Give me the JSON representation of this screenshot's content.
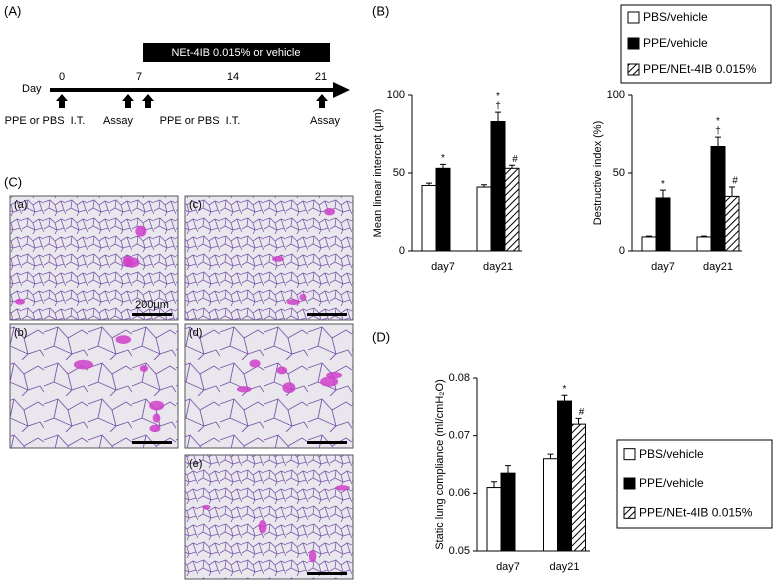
{
  "panel_labels": {
    "A": "(A)",
    "B": "(B)",
    "C": "(C)",
    "D": "(D)"
  },
  "timeline": {
    "axis_label": "Day",
    "days": [
      "0",
      "7",
      "14",
      "21"
    ],
    "treatment": "NEt-4IB 0.015% or vehicle",
    "events": [
      "PPE or PBS  I.T.",
      "Assay",
      "PPE or PBS  I.T.",
      "Assay"
    ]
  },
  "micrographs": {
    "labels": [
      "(a)",
      "(b)",
      "(c)",
      "(d)",
      "(e)"
    ],
    "scale_bar": "200μm"
  },
  "chart_data": [
    {
      "type": "bar",
      "y_label": "Mean linear intercept (μm)",
      "categories": [
        "day7",
        "day21"
      ],
      "ylim": [
        0,
        100
      ],
      "yticks": [
        0,
        50,
        100
      ],
      "legend": true,
      "series": [
        {
          "name": "PBS/vehicle",
          "color": "#ffffff",
          "values": [
            42,
            41
          ],
          "errors": [
            1.5,
            1.5
          ]
        },
        {
          "name": "PPE/vehicle",
          "color": "#000000",
          "values": [
            53,
            83
          ],
          "errors": [
            2.5,
            6
          ],
          "notes": [
            [
              "*"
            ],
            [
              "*",
              "†"
            ]
          ]
        },
        {
          "name": "PPE/NEt-4IB 0.015%",
          "color": "#ffffff",
          "hatch": true,
          "values": [
            null,
            53
          ],
          "errors": [
            null,
            2
          ],
          "notes": [
            null,
            [
              "#"
            ]
          ]
        }
      ]
    },
    {
      "type": "bar",
      "y_label": "Destructive index (%)",
      "categories": [
        "day7",
        "day21"
      ],
      "ylim": [
        0,
        100
      ],
      "yticks": [
        0,
        50,
        100
      ],
      "legend": false,
      "series": [
        {
          "name": "PBS/vehicle",
          "color": "#ffffff",
          "values": [
            9,
            9
          ],
          "errors": [
            0.5,
            0.5
          ]
        },
        {
          "name": "PPE/vehicle",
          "color": "#000000",
          "values": [
            34,
            67
          ],
          "errors": [
            5,
            6
          ],
          "notes": [
            [
              "*"
            ],
            [
              "*",
              "†"
            ]
          ]
        },
        {
          "name": "PPE/NEt-4IB 0.015%",
          "color": "#ffffff",
          "hatch": true,
          "values": [
            null,
            35
          ],
          "errors": [
            null,
            6
          ],
          "notes": [
            null,
            [
              "#"
            ]
          ]
        }
      ]
    },
    {
      "type": "bar",
      "y_label": "Static lung compliance (ml/cmH₂O)",
      "categories": [
        "day7",
        "day21"
      ],
      "ylim": [
        0.05,
        0.08
      ],
      "yticks": [
        0.05,
        0.06,
        0.07,
        0.08
      ],
      "legend": true,
      "series": [
        {
          "name": "PBS/vehicle",
          "color": "#ffffff",
          "values": [
            0.061,
            0.066
          ],
          "errors": [
            0.001,
            0.0008
          ]
        },
        {
          "name": "PPE/vehicle",
          "color": "#000000",
          "values": [
            0.0635,
            0.076
          ],
          "errors": [
            0.0013,
            0.001
          ],
          "notes": [
            null,
            [
              "*"
            ]
          ]
        },
        {
          "name": "PPE/NEt-4IB 0.015%",
          "color": "#ffffff",
          "hatch": true,
          "values": [
            null,
            0.072
          ],
          "errors": [
            null,
            0.001
          ],
          "notes": [
            null,
            [
              "#"
            ]
          ]
        }
      ]
    }
  ]
}
